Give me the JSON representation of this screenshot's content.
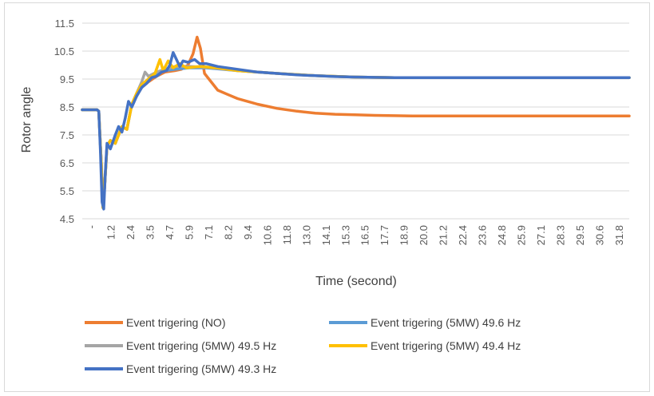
{
  "chart_data": {
    "type": "line",
    "xlabel": "Time (second)",
    "ylabel": "Rotor angle",
    "ylim": [
      4.5,
      11.5
    ],
    "y_ticks": [
      "4.5",
      "5.5",
      "6.5",
      "7.5",
      "8.5",
      "9.5",
      "10.5",
      "11.5"
    ],
    "x_tick_labels": [
      "-",
      "1.2",
      "2.4",
      "3.5",
      "4.7",
      "5.9",
      "7.1",
      "8.2",
      "9.4",
      "10.6",
      "11.8",
      "13.0",
      "14.1",
      "15.3",
      "16.5",
      "17.7",
      "18.9",
      "20.0",
      "21.2",
      "22.4",
      "23.6",
      "24.8",
      "25.9",
      "27.1",
      "28.3",
      "29.5",
      "30.6",
      "31.8"
    ],
    "xlim": [
      0,
      33.1
    ],
    "grid": true,
    "legend_position": "bottom",
    "series": [
      {
        "name": "Event trigering (NO)",
        "color": "#ED7D31",
        "points": [
          [
            0,
            8.4
          ],
          [
            0.9,
            8.4
          ],
          [
            1.0,
            8.35
          ],
          [
            1.15,
            6.5
          ],
          [
            1.25,
            4.9
          ],
          [
            1.35,
            5.6
          ],
          [
            1.5,
            7.1
          ],
          [
            1.7,
            7.3
          ],
          [
            2.0,
            7.2
          ],
          [
            2.4,
            7.8
          ],
          [
            2.7,
            7.7
          ],
          [
            3.0,
            8.6
          ],
          [
            3.3,
            8.9
          ],
          [
            3.6,
            9.2
          ],
          [
            4.0,
            9.4
          ],
          [
            4.5,
            9.6
          ],
          [
            5.0,
            9.75
          ],
          [
            5.6,
            9.8
          ],
          [
            6.0,
            9.85
          ],
          [
            6.4,
            10.0
          ],
          [
            6.7,
            10.4
          ],
          [
            6.95,
            11.0
          ],
          [
            7.15,
            10.6
          ],
          [
            7.4,
            9.7
          ],
          [
            7.8,
            9.4
          ],
          [
            8.2,
            9.1
          ],
          [
            8.8,
            8.95
          ],
          [
            9.4,
            8.8
          ],
          [
            10.6,
            8.6
          ],
          [
            11.8,
            8.45
          ],
          [
            13.0,
            8.35
          ],
          [
            14.1,
            8.28
          ],
          [
            15.3,
            8.24
          ],
          [
            16.5,
            8.22
          ],
          [
            17.7,
            8.2
          ],
          [
            18.9,
            8.19
          ],
          [
            20.0,
            8.18
          ],
          [
            22.4,
            8.18
          ],
          [
            25.9,
            8.18
          ],
          [
            29.5,
            8.18
          ],
          [
            33.1,
            8.18
          ]
        ]
      },
      {
        "name": "Event trigering (5MW) 49.6 Hz",
        "color": "#5B9BD5",
        "points": [
          [
            0,
            8.4
          ],
          [
            0.9,
            8.4
          ],
          [
            1.0,
            8.35
          ],
          [
            1.15,
            6.5
          ],
          [
            1.25,
            4.9
          ],
          [
            1.35,
            5.6
          ],
          [
            1.5,
            7.1
          ],
          [
            1.7,
            7.3
          ],
          [
            2.0,
            7.2
          ],
          [
            2.4,
            7.8
          ],
          [
            2.7,
            7.7
          ],
          [
            3.0,
            8.6
          ],
          [
            3.3,
            8.9
          ],
          [
            3.6,
            9.2
          ],
          [
            4.0,
            9.45
          ],
          [
            4.5,
            9.7
          ],
          [
            5.0,
            9.8
          ],
          [
            5.6,
            9.85
          ],
          [
            6.5,
            9.9
          ],
          [
            7.5,
            9.9
          ],
          [
            9.4,
            9.8
          ],
          [
            11.8,
            9.7
          ],
          [
            14.1,
            9.62
          ],
          [
            16.5,
            9.57
          ],
          [
            18.9,
            9.55
          ],
          [
            21.2,
            9.55
          ],
          [
            25.9,
            9.55
          ],
          [
            29.5,
            9.55
          ],
          [
            33.1,
            9.55
          ]
        ]
      },
      {
        "name": "Event trigering (5MW) 49.5 Hz",
        "color": "#A5A5A5",
        "points": [
          [
            0,
            8.4
          ],
          [
            0.9,
            8.4
          ],
          [
            1.0,
            8.35
          ],
          [
            1.15,
            6.5
          ],
          [
            1.25,
            4.9
          ],
          [
            1.35,
            5.6
          ],
          [
            1.5,
            7.1
          ],
          [
            1.7,
            7.3
          ],
          [
            2.0,
            7.2
          ],
          [
            2.4,
            7.8
          ],
          [
            2.7,
            7.7
          ],
          [
            3.0,
            8.6
          ],
          [
            3.3,
            9.0
          ],
          [
            3.6,
            9.4
          ],
          [
            3.8,
            9.75
          ],
          [
            4.0,
            9.6
          ],
          [
            4.5,
            9.75
          ],
          [
            5.0,
            9.85
          ],
          [
            5.6,
            9.95
          ],
          [
            6.5,
            9.95
          ],
          [
            7.5,
            9.92
          ],
          [
            9.4,
            9.8
          ],
          [
            11.8,
            9.7
          ],
          [
            14.1,
            9.62
          ],
          [
            16.5,
            9.57
          ],
          [
            18.9,
            9.55
          ],
          [
            21.2,
            9.55
          ],
          [
            25.9,
            9.55
          ],
          [
            29.5,
            9.55
          ],
          [
            33.1,
            9.55
          ]
        ]
      },
      {
        "name": "Event trigering (5MW) 49.4 Hz",
        "color": "#FFC000",
        "points": [
          [
            0,
            8.4
          ],
          [
            0.9,
            8.4
          ],
          [
            1.0,
            8.35
          ],
          [
            1.15,
            6.5
          ],
          [
            1.25,
            4.9
          ],
          [
            1.35,
            5.6
          ],
          [
            1.5,
            7.1
          ],
          [
            1.7,
            7.3
          ],
          [
            2.0,
            7.2
          ],
          [
            2.4,
            7.8
          ],
          [
            2.7,
            7.7
          ],
          [
            3.0,
            8.6
          ],
          [
            3.3,
            9.0
          ],
          [
            3.6,
            9.3
          ],
          [
            4.0,
            9.5
          ],
          [
            4.4,
            9.7
          ],
          [
            4.7,
            10.2
          ],
          [
            4.9,
            9.8
          ],
          [
            5.2,
            10.15
          ],
          [
            5.5,
            9.9
          ],
          [
            5.9,
            10.05
          ],
          [
            6.3,
            9.9
          ],
          [
            7.1,
            9.95
          ],
          [
            8.2,
            9.9
          ],
          [
            9.4,
            9.8
          ],
          [
            11.8,
            9.7
          ],
          [
            14.1,
            9.62
          ],
          [
            16.5,
            9.57
          ],
          [
            18.9,
            9.55
          ],
          [
            21.2,
            9.55
          ],
          [
            25.9,
            9.55
          ],
          [
            29.5,
            9.55
          ],
          [
            33.1,
            9.55
          ]
        ]
      },
      {
        "name": "Event trigering (5MW) 49.3 Hz",
        "color": "#4472C4",
        "points": [
          [
            0,
            8.4
          ],
          [
            0.9,
            8.4
          ],
          [
            1.0,
            8.35
          ],
          [
            1.1,
            6.9
          ],
          [
            1.2,
            5.1
          ],
          [
            1.3,
            4.85
          ],
          [
            1.4,
            6.2
          ],
          [
            1.5,
            7.2
          ],
          [
            1.7,
            7.0
          ],
          [
            2.0,
            7.5
          ],
          [
            2.2,
            7.8
          ],
          [
            2.4,
            7.6
          ],
          [
            2.6,
            8.1
          ],
          [
            2.8,
            8.7
          ],
          [
            3.0,
            8.5
          ],
          [
            3.3,
            8.9
          ],
          [
            3.6,
            9.2
          ],
          [
            3.9,
            9.35
          ],
          [
            4.2,
            9.55
          ],
          [
            4.5,
            9.6
          ],
          [
            4.8,
            9.75
          ],
          [
            5.1,
            9.8
          ],
          [
            5.3,
            10.0
          ],
          [
            5.5,
            10.45
          ],
          [
            5.7,
            10.2
          ],
          [
            5.9,
            9.95
          ],
          [
            6.1,
            10.15
          ],
          [
            6.4,
            10.1
          ],
          [
            6.8,
            10.2
          ],
          [
            7.1,
            10.05
          ],
          [
            7.5,
            10.05
          ],
          [
            8.2,
            9.95
          ],
          [
            9.4,
            9.85
          ],
          [
            10.6,
            9.75
          ],
          [
            11.8,
            9.7
          ],
          [
            13.0,
            9.65
          ],
          [
            14.1,
            9.62
          ],
          [
            15.3,
            9.59
          ],
          [
            16.5,
            9.57
          ],
          [
            18.9,
            9.55
          ],
          [
            21.2,
            9.55
          ],
          [
            25.9,
            9.55
          ],
          [
            29.5,
            9.55
          ],
          [
            33.1,
            9.55
          ]
        ]
      }
    ]
  }
}
